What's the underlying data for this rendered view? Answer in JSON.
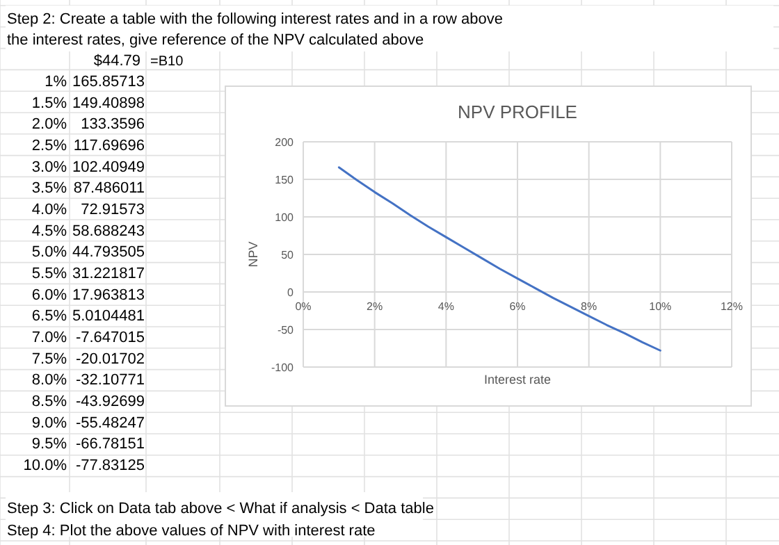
{
  "chart_data": {
    "type": "line",
    "title": "NPV PROFILE",
    "xlabel": "Interest rate",
    "ylabel": "NPV",
    "x": [
      1,
      1.5,
      2,
      2.5,
      3,
      3.5,
      4,
      4.5,
      5,
      5.5,
      6,
      6.5,
      7,
      7.5,
      8,
      8.5,
      9,
      9.5,
      10
    ],
    "series": [
      {
        "color": "#4472c4",
        "values": [
          166,
          149,
          133,
          118,
          102,
          87,
          73,
          59,
          45,
          31,
          18,
          5,
          -8,
          -20,
          -32,
          -44,
          -55,
          -67,
          -78
        ]
      }
    ],
    "xlim": [
      0,
      12
    ],
    "xticks": [
      {
        "value": 0,
        "label": "0%"
      },
      {
        "value": 2,
        "label": "2%"
      },
      {
        "value": 4,
        "label": "4%"
      },
      {
        "value": 6,
        "label": "6%"
      },
      {
        "value": 8,
        "label": "8%"
      },
      {
        "value": 10,
        "label": "10%"
      },
      {
        "value": 12,
        "label": "12%"
      }
    ],
    "ylim": [
      -100,
      200
    ],
    "yticks": [
      -100,
      -50,
      0,
      50,
      100,
      150,
      200
    ],
    "grid": true,
    "marker": "none",
    "line_style": "solid",
    "annotations": [
      "Step 2: Create a table with the following interest rates and in a row above",
      "the interest rates, give reference of the NPV calculated above",
      "$44.79",
      "=B10",
      "1%",
      "165.85713",
      "1.5%",
      "149.40898",
      "2.0%",
      "133.3596",
      "2.5%",
      "117.69696",
      "3.0%",
      "102.40949",
      "3.5%",
      "87.486011",
      "4.0%",
      "72.91573",
      "4.5%",
      "58.688243",
      "5.0%",
      "44.793505",
      "5.5%",
      "31.221817",
      "6.0%",
      "17.963813",
      "6.5%",
      "5.0104481",
      "7.0%",
      "-7.647015",
      "7.5%",
      "-20.01702",
      "8.0%",
      "-32.10771",
      "8.5%",
      "-43.92699",
      "9.0%",
      "-55.48247",
      "9.5%",
      "-66.78151",
      "10.0%",
      "-77.83125",
      "Step 3: Click on Data tab above < What if analysis < Data table",
      "Step 4: Plot the above values of NPV with interest rate"
    ]
  }
}
